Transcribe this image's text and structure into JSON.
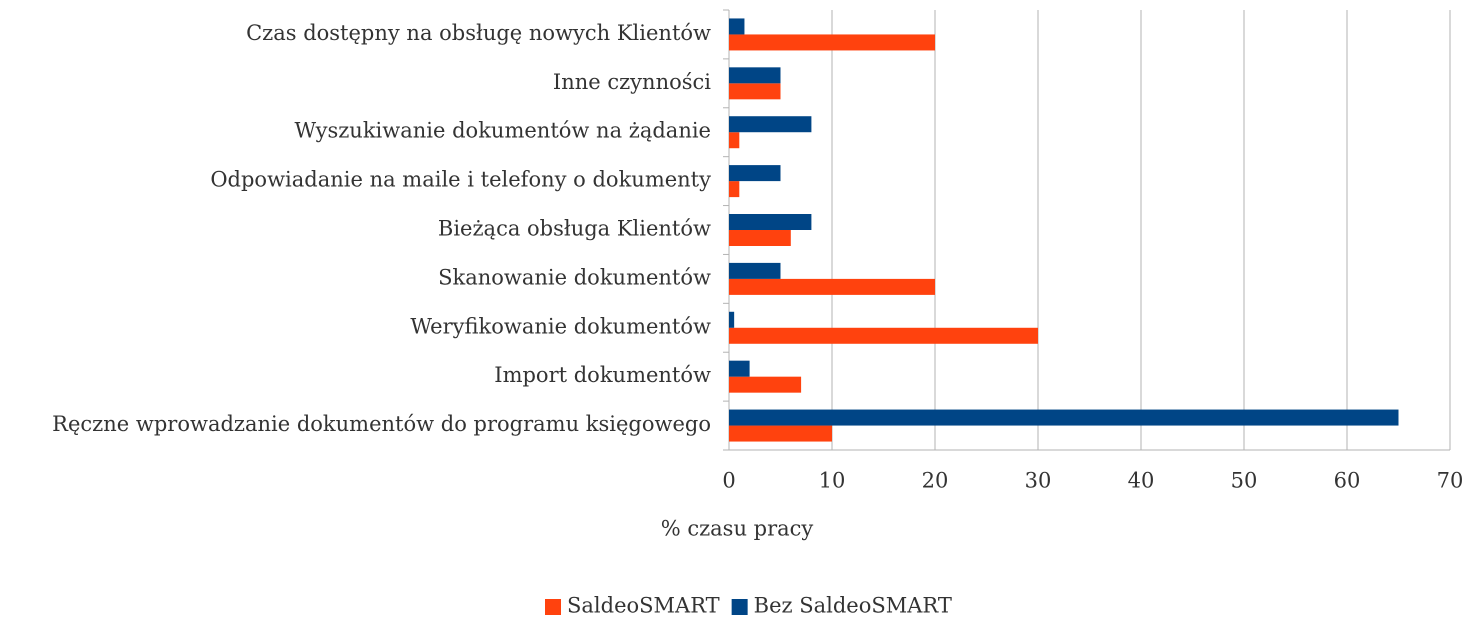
{
  "chart_data": {
    "type": "hbar",
    "xlabel": "% czasu pracy",
    "categories": [
      "Czas dostępny na obsługę nowych Klientów",
      "Inne czynności",
      "Wyszukiwanie dokumentów na żądanie",
      "Odpowiadanie na maile i telefony o dokumenty",
      "Bieżąca obsługa Klientów",
      "Skanowanie dokumentów",
      "Weryfikowanie dokumentów",
      "Import dokumentów",
      "Ręczne wprowadzanie dokumentów do programu księgowego"
    ],
    "series": [
      {
        "name": "SaldeoSMART",
        "color": "#ff420e",
        "values": [
          20,
          5,
          1,
          1,
          6,
          20,
          30,
          7,
          10
        ]
      },
      {
        "name": "Bez SaldeoSMART",
        "color": "#004586",
        "values": [
          1.5,
          5,
          8,
          5,
          8,
          5,
          0.5,
          2,
          65
        ]
      }
    ],
    "xlim": [
      0,
      70
    ],
    "xticks": [
      0,
      10,
      20,
      30,
      40,
      50,
      60,
      70
    ],
    "grid": true,
    "legend": "bottom"
  }
}
